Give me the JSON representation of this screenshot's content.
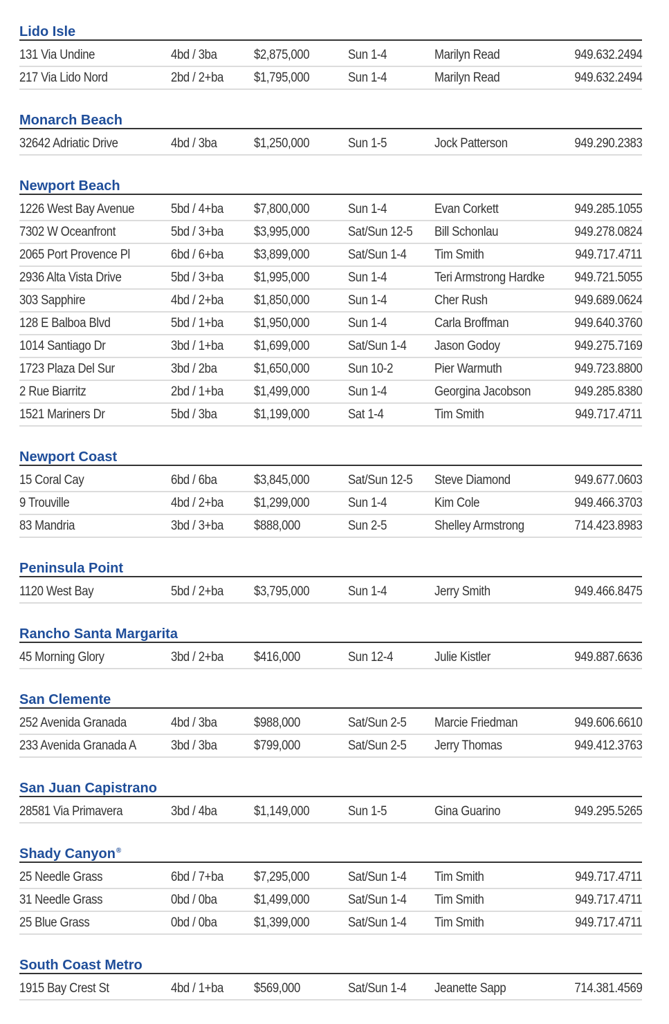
{
  "colors": {
    "heading": "#1f4e9a",
    "text": "#333333",
    "rule": "#333333",
    "row_divider": "#dcdcdc"
  },
  "sections": [
    {
      "name": "Lido Isle",
      "listings": [
        [
          "131 Via Undine",
          "4bd / 3ba",
          "$2,875,000",
          "Sun 1-4",
          "Marilyn Read",
          "949.632.2494"
        ],
        [
          "217 Via Lido Nord",
          "2bd / 2+ba",
          "$1,795,000",
          "Sun 1-4",
          "Marilyn Read",
          "949.632.2494"
        ]
      ]
    },
    {
      "name": "Monarch Beach",
      "listings": [
        [
          "32642 Adriatic Drive",
          "4bd / 3ba",
          "$1,250,000",
          "Sun 1-5",
          "Jock Patterson",
          "949.290.2383"
        ]
      ]
    },
    {
      "name": "Newport Beach",
      "listings": [
        [
          "1226 West Bay Avenue",
          "5bd / 4+ba",
          "$7,800,000",
          "Sun 1-4",
          "Evan Corkett",
          "949.285.1055"
        ],
        [
          "7302 W Oceanfront",
          "5bd / 3+ba",
          "$3,995,000",
          "Sat/Sun 12-5",
          "Bill Schonlau",
          "949.278.0824"
        ],
        [
          "2065 Port Provence Pl",
          "6bd / 6+ba",
          "$3,899,000",
          "Sat/Sun 1-4",
          "Tim Smith",
          "949.717.4711"
        ],
        [
          "2936 Alta Vista Drive",
          "5bd / 3+ba",
          "$1,995,000",
          "Sun 1-4",
          "Teri Armstrong Hardke",
          "949.721.5055"
        ],
        [
          "303 Sapphire",
          "4bd / 2+ba",
          "$1,850,000",
          "Sun 1-4",
          "Cher Rush",
          "949.689.0624"
        ],
        [
          "128 E Balboa Blvd",
          "5bd / 1+ba",
          "$1,950,000",
          "Sun 1-4",
          "Carla Broffman",
          "949.640.3760"
        ],
        [
          "1014 Santiago Dr",
          "3bd / 1+ba",
          "$1,699,000",
          "Sat/Sun 1-4",
          "Jason Godoy",
          "949.275.7169"
        ],
        [
          "1723 Plaza Del Sur",
          "3bd / 2ba",
          "$1,650,000",
          "Sun 10-2",
          "Pier Warmuth",
          "949.723.8800"
        ],
        [
          "2 Rue Biarritz",
          "2bd / 1+ba",
          "$1,499,000",
          "Sun 1-4",
          "Georgina Jacobson",
          "949.285.8380"
        ],
        [
          "1521 Mariners Dr",
          "5bd / 3ba",
          "$1,199,000",
          "Sat 1-4",
          "Tim Smith",
          "949.717.4711"
        ]
      ]
    },
    {
      "name": "Newport Coast",
      "listings": [
        [
          "15 Coral Cay",
          "6bd / 6ba",
          "$3,845,000",
          "Sat/Sun 12-5",
          "Steve Diamond",
          "949.677.0603"
        ],
        [
          "9 Trouville",
          "4bd / 2+ba",
          "$1,299,000",
          "Sun 1-4",
          "Kim Cole",
          "949.466.3703"
        ],
        [
          "83 Mandria",
          "3bd / 3+ba",
          "$888,000",
          "Sun 2-5",
          "Shelley Armstrong",
          "714.423.8983"
        ]
      ]
    },
    {
      "name": "Peninsula Point",
      "listings": [
        [
          "1120 West Bay",
          "5bd / 2+ba",
          "$3,795,000",
          "Sun 1-4",
          "Jerry Smith",
          "949.466.8475"
        ]
      ]
    },
    {
      "name": "Rancho Santa Margarita",
      "listings": [
        [
          "45 Morning Glory",
          "3bd / 2+ba",
          "$416,000",
          "Sun 12-4",
          "Julie Kistler",
          "949.887.6636"
        ]
      ]
    },
    {
      "name": "San Clemente",
      "listings": [
        [
          "252 Avenida Granada",
          "4bd / 3ba",
          "$988,000",
          "Sat/Sun 2-5",
          "Marcie Friedman",
          "949.606.6610"
        ],
        [
          "233 Avenida Granada A",
          "3bd / 3ba",
          "$799,000",
          "Sat/Sun 2-5",
          "Jerry Thomas",
          "949.412.3763"
        ]
      ]
    },
    {
      "name": "San Juan Capistrano",
      "listings": [
        [
          "28581 Via Primavera",
          "3bd / 4ba",
          "$1,149,000",
          "Sun 1-5",
          "Gina Guarino",
          "949.295.5265"
        ]
      ]
    },
    {
      "name": "Shady Canyon",
      "mark": "®",
      "listings": [
        [
          "25 Needle Grass",
          "6bd / 7+ba",
          "$7,295,000",
          "Sat/Sun 1-4",
          "Tim Smith",
          "949.717.4711"
        ],
        [
          "31 Needle Grass",
          "0bd / 0ba",
          "$1,499,000",
          "Sat/Sun 1-4",
          "Tim Smith",
          "949.717.4711"
        ],
        [
          "25 Blue Grass",
          "0bd / 0ba",
          "$1,399,000",
          "Sat/Sun 1-4",
          "Tim Smith",
          "949.717.4711"
        ]
      ]
    },
    {
      "name": "South Coast Metro",
      "listings": [
        [
          "1915 Bay Crest St",
          "4bd / 1+ba",
          "$569,000",
          "Sat/Sun 1-4",
          "Jeanette Sapp",
          "714.381.4569"
        ]
      ]
    }
  ]
}
